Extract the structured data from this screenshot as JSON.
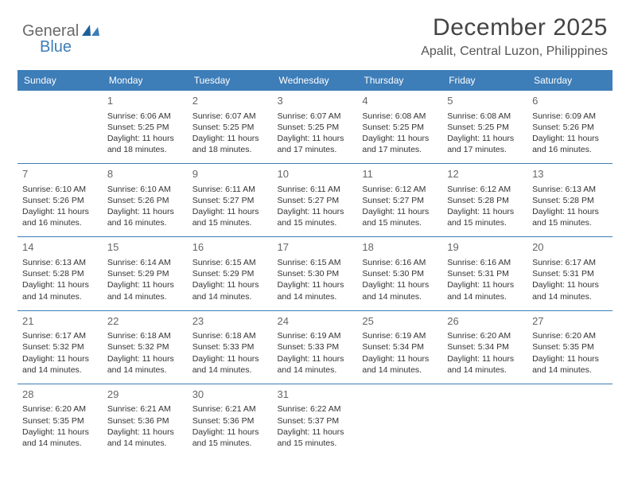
{
  "logo": {
    "text1": "General",
    "text2": "Blue"
  },
  "header": {
    "title": "December 2025",
    "subtitle": "Apalit, Central Luzon, Philippines"
  },
  "colors": {
    "header_bg": "#3d7db8",
    "header_fg": "#ffffff",
    "rule": "#3d7db8",
    "body_text": "#333333",
    "daynum": "#666666",
    "page_bg": "#ffffff",
    "logo_gray": "#6a6a6a",
    "logo_blue": "#3d7db8"
  },
  "calendar": {
    "type": "table",
    "columns": [
      "Sunday",
      "Monday",
      "Tuesday",
      "Wednesday",
      "Thursday",
      "Friday",
      "Saturday"
    ],
    "col_width_pct": 14.28,
    "header_fontsize": 12,
    "cell_fontsize": 10.5,
    "daynum_fontsize": 13,
    "rows": [
      [
        null,
        {
          "n": "1",
          "sr": "6:06 AM",
          "ss": "5:25 PM",
          "dl": "11 hours and 18 minutes."
        },
        {
          "n": "2",
          "sr": "6:07 AM",
          "ss": "5:25 PM",
          "dl": "11 hours and 18 minutes."
        },
        {
          "n": "3",
          "sr": "6:07 AM",
          "ss": "5:25 PM",
          "dl": "11 hours and 17 minutes."
        },
        {
          "n": "4",
          "sr": "6:08 AM",
          "ss": "5:25 PM",
          "dl": "11 hours and 17 minutes."
        },
        {
          "n": "5",
          "sr": "6:08 AM",
          "ss": "5:25 PM",
          "dl": "11 hours and 17 minutes."
        },
        {
          "n": "6",
          "sr": "6:09 AM",
          "ss": "5:26 PM",
          "dl": "11 hours and 16 minutes."
        }
      ],
      [
        {
          "n": "7",
          "sr": "6:10 AM",
          "ss": "5:26 PM",
          "dl": "11 hours and 16 minutes."
        },
        {
          "n": "8",
          "sr": "6:10 AM",
          "ss": "5:26 PM",
          "dl": "11 hours and 16 minutes."
        },
        {
          "n": "9",
          "sr": "6:11 AM",
          "ss": "5:27 PM",
          "dl": "11 hours and 15 minutes."
        },
        {
          "n": "10",
          "sr": "6:11 AM",
          "ss": "5:27 PM",
          "dl": "11 hours and 15 minutes."
        },
        {
          "n": "11",
          "sr": "6:12 AM",
          "ss": "5:27 PM",
          "dl": "11 hours and 15 minutes."
        },
        {
          "n": "12",
          "sr": "6:12 AM",
          "ss": "5:28 PM",
          "dl": "11 hours and 15 minutes."
        },
        {
          "n": "13",
          "sr": "6:13 AM",
          "ss": "5:28 PM",
          "dl": "11 hours and 15 minutes."
        }
      ],
      [
        {
          "n": "14",
          "sr": "6:13 AM",
          "ss": "5:28 PM",
          "dl": "11 hours and 14 minutes."
        },
        {
          "n": "15",
          "sr": "6:14 AM",
          "ss": "5:29 PM",
          "dl": "11 hours and 14 minutes."
        },
        {
          "n": "16",
          "sr": "6:15 AM",
          "ss": "5:29 PM",
          "dl": "11 hours and 14 minutes."
        },
        {
          "n": "17",
          "sr": "6:15 AM",
          "ss": "5:30 PM",
          "dl": "11 hours and 14 minutes."
        },
        {
          "n": "18",
          "sr": "6:16 AM",
          "ss": "5:30 PM",
          "dl": "11 hours and 14 minutes."
        },
        {
          "n": "19",
          "sr": "6:16 AM",
          "ss": "5:31 PM",
          "dl": "11 hours and 14 minutes."
        },
        {
          "n": "20",
          "sr": "6:17 AM",
          "ss": "5:31 PM",
          "dl": "11 hours and 14 minutes."
        }
      ],
      [
        {
          "n": "21",
          "sr": "6:17 AM",
          "ss": "5:32 PM",
          "dl": "11 hours and 14 minutes."
        },
        {
          "n": "22",
          "sr": "6:18 AM",
          "ss": "5:32 PM",
          "dl": "11 hours and 14 minutes."
        },
        {
          "n": "23",
          "sr": "6:18 AM",
          "ss": "5:33 PM",
          "dl": "11 hours and 14 minutes."
        },
        {
          "n": "24",
          "sr": "6:19 AM",
          "ss": "5:33 PM",
          "dl": "11 hours and 14 minutes."
        },
        {
          "n": "25",
          "sr": "6:19 AM",
          "ss": "5:34 PM",
          "dl": "11 hours and 14 minutes."
        },
        {
          "n": "26",
          "sr": "6:20 AM",
          "ss": "5:34 PM",
          "dl": "11 hours and 14 minutes."
        },
        {
          "n": "27",
          "sr": "6:20 AM",
          "ss": "5:35 PM",
          "dl": "11 hours and 14 minutes."
        }
      ],
      [
        {
          "n": "28",
          "sr": "6:20 AM",
          "ss": "5:35 PM",
          "dl": "11 hours and 14 minutes."
        },
        {
          "n": "29",
          "sr": "6:21 AM",
          "ss": "5:36 PM",
          "dl": "11 hours and 14 minutes."
        },
        {
          "n": "30",
          "sr": "6:21 AM",
          "ss": "5:36 PM",
          "dl": "11 hours and 15 minutes."
        },
        {
          "n": "31",
          "sr": "6:22 AM",
          "ss": "5:37 PM",
          "dl": "11 hours and 15 minutes."
        },
        null,
        null,
        null
      ]
    ],
    "labels": {
      "sunrise": "Sunrise:",
      "sunset": "Sunset:",
      "daylight": "Daylight:"
    }
  }
}
